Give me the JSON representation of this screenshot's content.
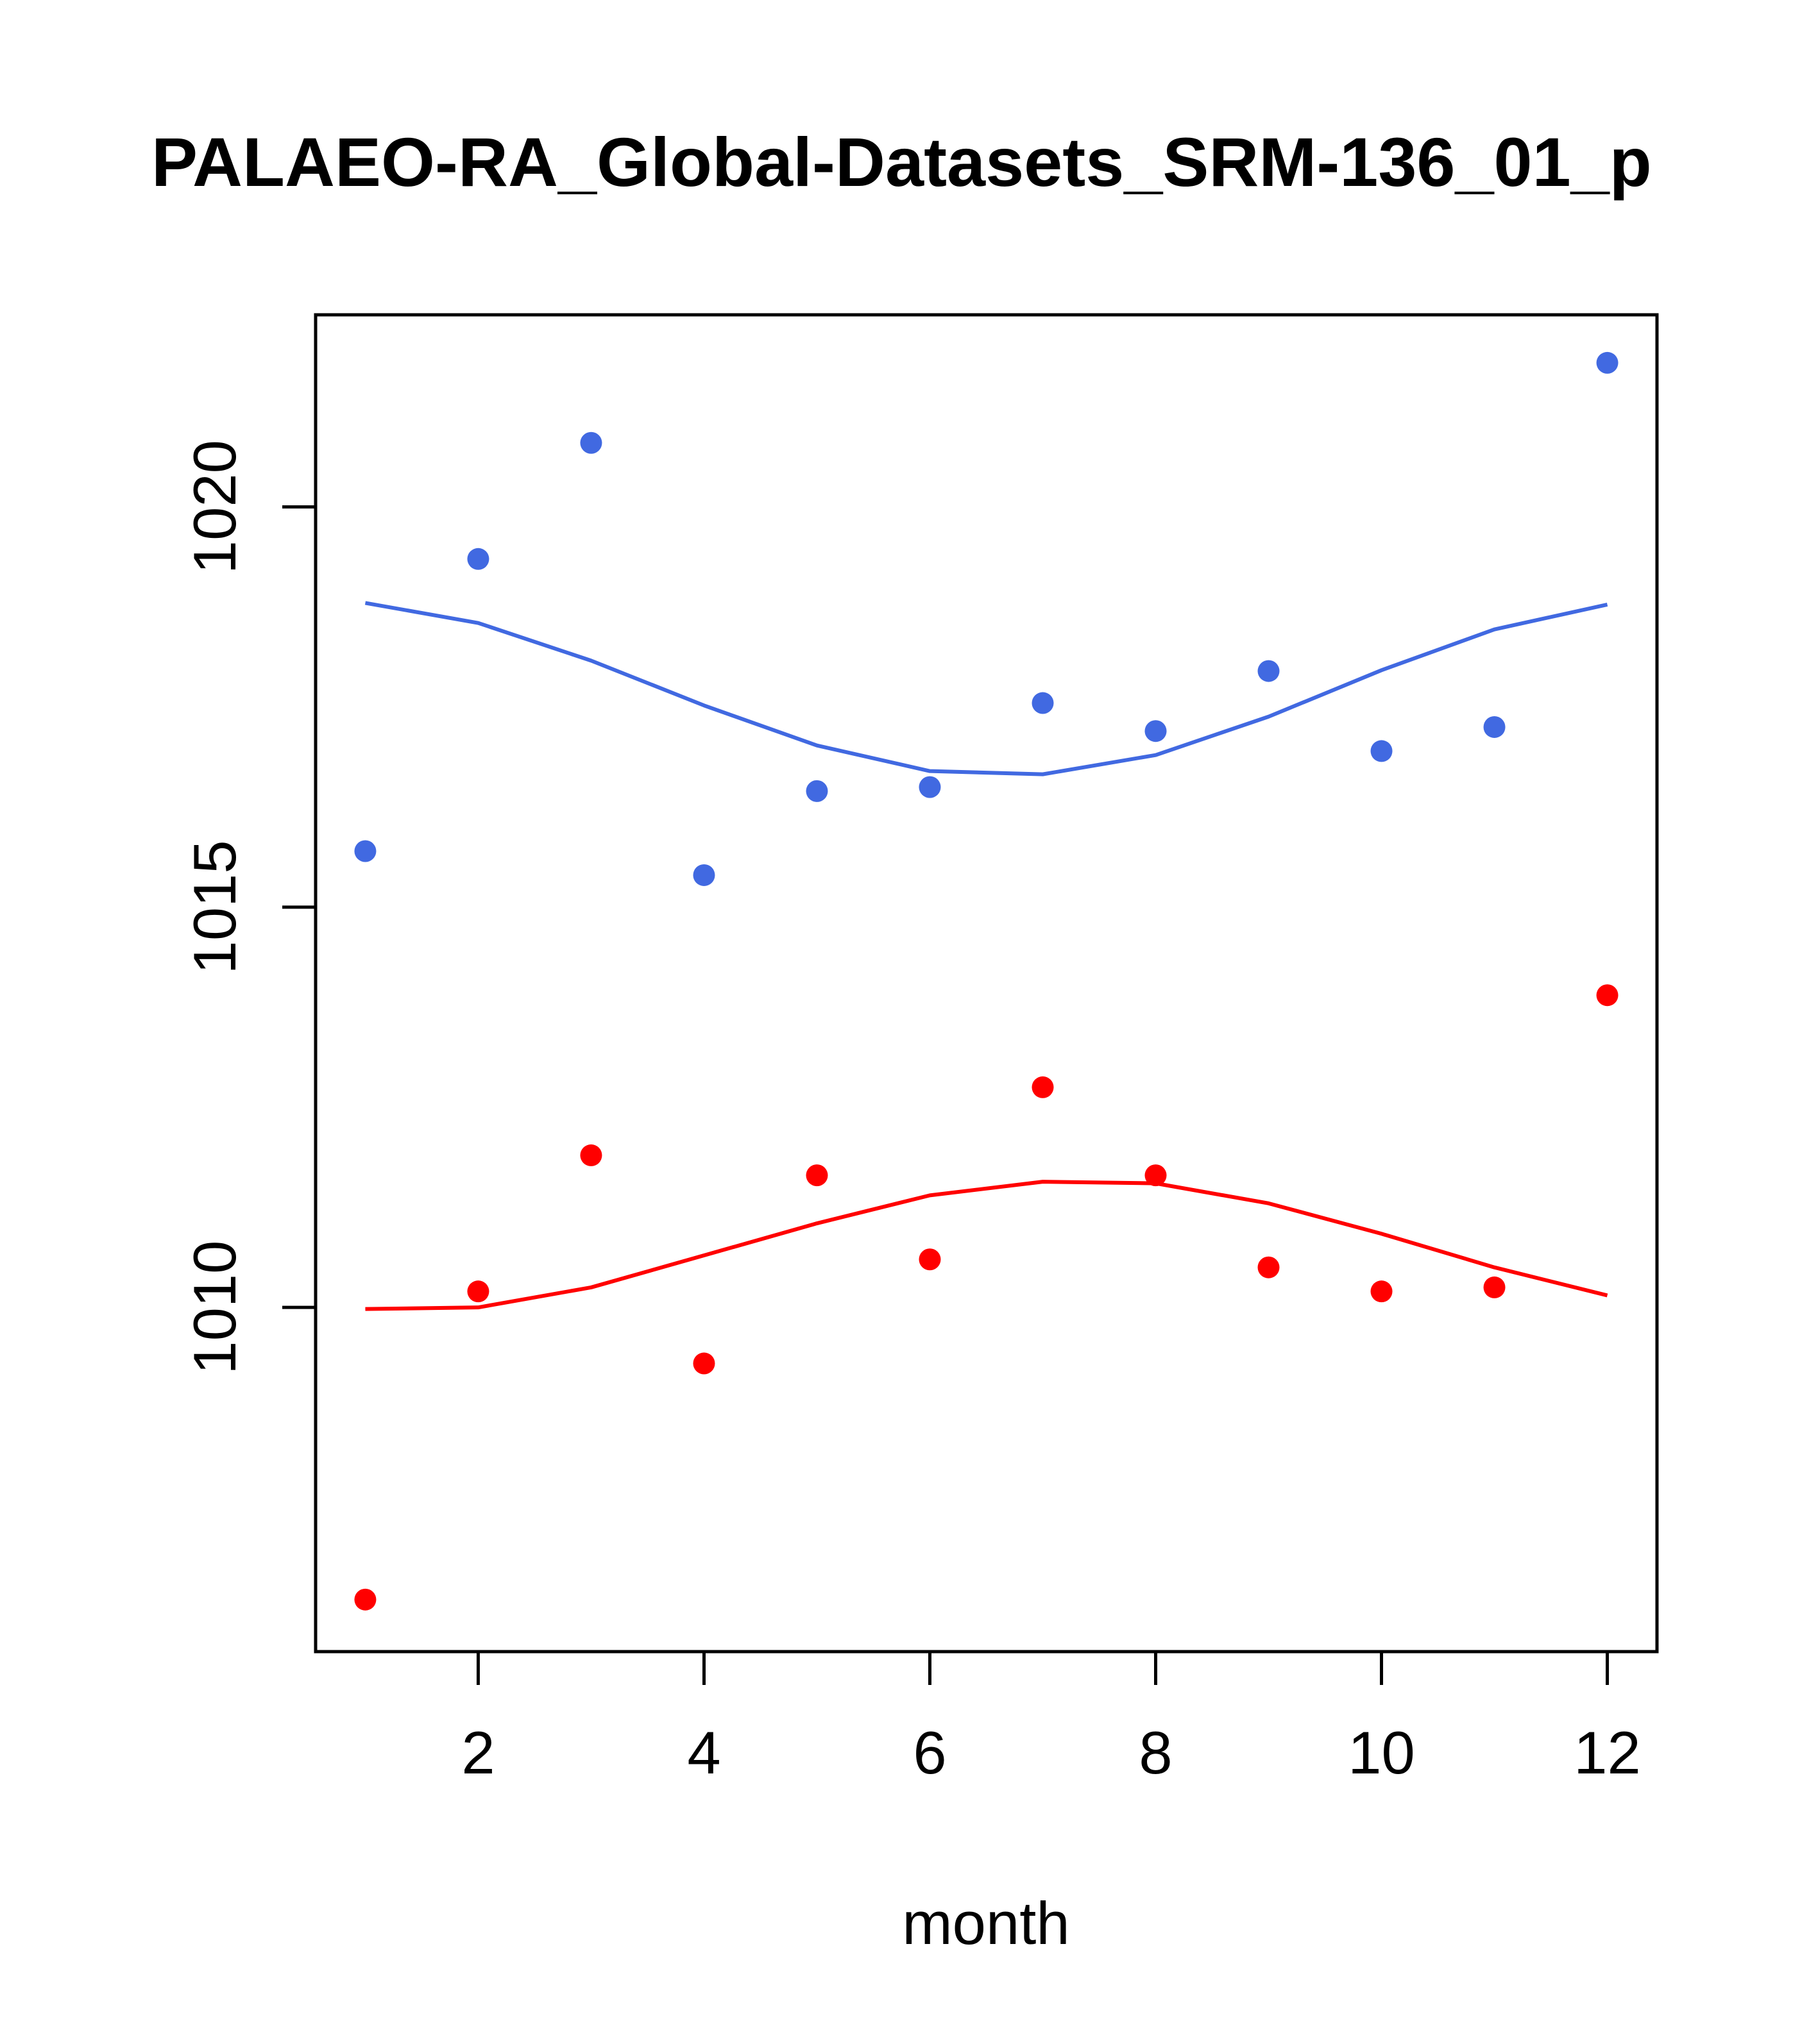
{
  "chart_data": {
    "type": "scatter",
    "title": "PALAEO-RA_Global-Datasets_SRM-136_01_p",
    "xlabel": "month",
    "ylabel": "",
    "xlim": [
      0.56,
      12.44
    ],
    "ylim": [
      1005.7,
      1022.4
    ],
    "xticks": [
      2,
      4,
      6,
      8,
      10,
      12
    ],
    "yticks": [
      1010,
      1015,
      1020
    ],
    "x": [
      1,
      2,
      3,
      4,
      5,
      6,
      7,
      8,
      9,
      10,
      11,
      12
    ],
    "series": [
      {
        "name": "blue points",
        "color": "#4169E1",
        "kind": "points",
        "values": [
          1015.7,
          1019.35,
          1020.8,
          1015.4,
          1016.45,
          1016.5,
          1017.55,
          1017.2,
          1017.95,
          1016.95,
          1017.25,
          1021.8
        ]
      },
      {
        "name": "blue line",
        "color": "#4169E1",
        "kind": "line",
        "values": [
          1018.8,
          1018.55,
          1018.08,
          1017.52,
          1017.02,
          1016.7,
          1016.66,
          1016.9,
          1017.38,
          1017.96,
          1018.47,
          1018.78
        ]
      },
      {
        "name": "red points",
        "color": "#FF0000",
        "kind": "points",
        "values": [
          1006.35,
          1010.2,
          1011.9,
          1009.3,
          1011.65,
          1010.6,
          1012.75,
          1011.65,
          1010.5,
          1010.2,
          1010.25,
          1013.9
        ]
      },
      {
        "name": "red line",
        "color": "#FF0000",
        "kind": "line",
        "values": [
          1009.98,
          1010.0,
          1010.25,
          1010.65,
          1011.05,
          1011.4,
          1011.57,
          1011.55,
          1011.3,
          1010.92,
          1010.5,
          1010.15
        ]
      }
    ]
  }
}
